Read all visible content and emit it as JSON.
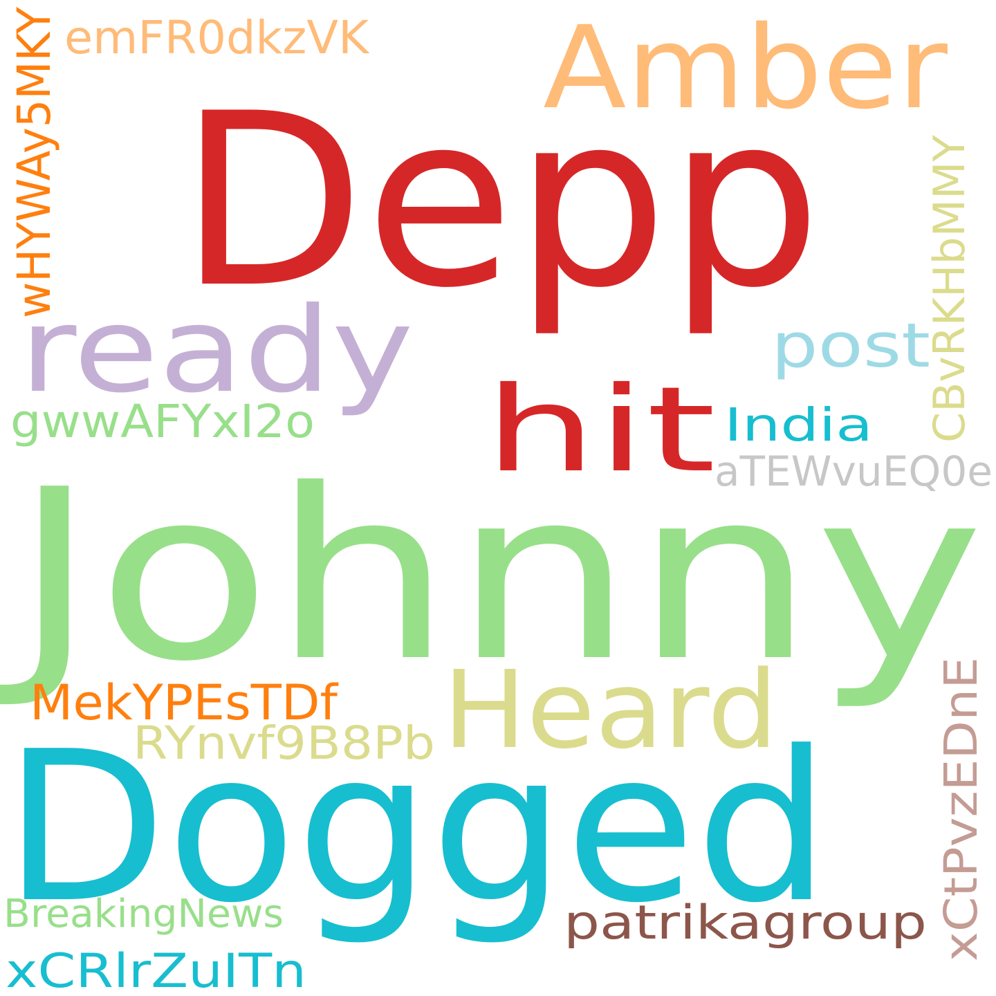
{
  "word_cloud": {
    "background": "#ffffff",
    "words": [
      {
        "text": "Johnny",
        "color": "#98df8a",
        "orientation": "horizontal"
      },
      {
        "text": "Depp",
        "color": "#d62728",
        "orientation": "horizontal"
      },
      {
        "text": "Dogged",
        "color": "#17becf",
        "orientation": "horizontal"
      },
      {
        "text": "Amber",
        "color": "#ffbb78",
        "orientation": "horizontal"
      },
      {
        "text": "ready",
        "color": "#c5b0d5",
        "orientation": "horizontal"
      },
      {
        "text": "Heard",
        "color": "#dbdb8d",
        "orientation": "horizontal"
      },
      {
        "text": "hit",
        "color": "#d62728",
        "orientation": "horizontal"
      },
      {
        "text": "post",
        "color": "#9edae5",
        "orientation": "horizontal"
      },
      {
        "text": "emFR0dkzVK",
        "color": "#ffbb78",
        "orientation": "horizontal"
      },
      {
        "text": "wHYWAy5MKY",
        "color": "#ff7f0e",
        "orientation": "vertical"
      },
      {
        "text": "CBvRKHbMMY",
        "color": "#dbdb8d",
        "orientation": "vertical"
      },
      {
        "text": "gwwAFYxI2o",
        "color": "#98df8a",
        "orientation": "horizontal"
      },
      {
        "text": "India",
        "color": "#17becf",
        "orientation": "horizontal"
      },
      {
        "text": "aTEWvuEQ0e",
        "color": "#c7c7c7",
        "orientation": "horizontal"
      },
      {
        "text": "MekYPEsTDf",
        "color": "#ff7f0e",
        "orientation": "horizontal"
      },
      {
        "text": "RYnvf9B8Pb",
        "color": "#dbdb8d",
        "orientation": "horizontal"
      },
      {
        "text": "xCtPvzEDnE",
        "color": "#c49c94",
        "orientation": "vertical"
      },
      {
        "text": "BreakingNews",
        "color": "#98df8a",
        "orientation": "horizontal"
      },
      {
        "text": "patrikagroup",
        "color": "#8c564b",
        "orientation": "horizontal"
      },
      {
        "text": "xCRlrZuITn",
        "color": "#17becf",
        "orientation": "horizontal"
      }
    ]
  }
}
